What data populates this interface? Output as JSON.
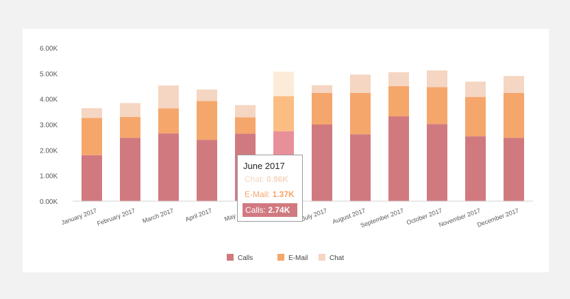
{
  "chart_data": {
    "type": "bar",
    "stacked": true,
    "categories": [
      "January 2017",
      "February 2017",
      "March 2017",
      "April 2017",
      "May 2017",
      "June 2017",
      "July 2017",
      "August 2017",
      "September 2017",
      "October 2017",
      "November 2017",
      "December 2017"
    ],
    "series": [
      {
        "name": "Calls",
        "color": "#d07a80",
        "highlight": "#e8909a",
        "values": [
          1.8,
          2.48,
          2.65,
          2.4,
          2.64,
          2.74,
          3.0,
          2.62,
          3.32,
          3.02,
          2.54,
          2.48
        ]
      },
      {
        "name": "E-Mail",
        "color": "#f5a66b",
        "highlight": "#fbbd82",
        "values": [
          1.46,
          0.82,
          0.98,
          1.52,
          0.64,
          1.37,
          1.24,
          1.62,
          1.18,
          1.44,
          1.54,
          1.76
        ]
      },
      {
        "name": "Chat",
        "color": "#f5d6c2",
        "highlight": "#fdebd9",
        "values": [
          0.38,
          0.54,
          0.9,
          0.45,
          0.48,
          0.96,
          0.3,
          0.72,
          0.55,
          0.66,
          0.6,
          0.66
        ]
      }
    ],
    "ylim": [
      0,
      6
    ],
    "yticks": [
      "0.00K",
      "1.00K",
      "2.00K",
      "3.00K",
      "4.00K",
      "5.00K",
      "6.00K"
    ],
    "legend_position": "bottom-center",
    "highlighted_index": 5,
    "tooltip": {
      "title": "June 2017",
      "chat_label": "Chat: ",
      "chat_value": "0.96K",
      "email_label": "E-Mail: ",
      "email_value": "1.37K",
      "calls_label": "Calls: ",
      "calls_value": "2.74K"
    }
  }
}
